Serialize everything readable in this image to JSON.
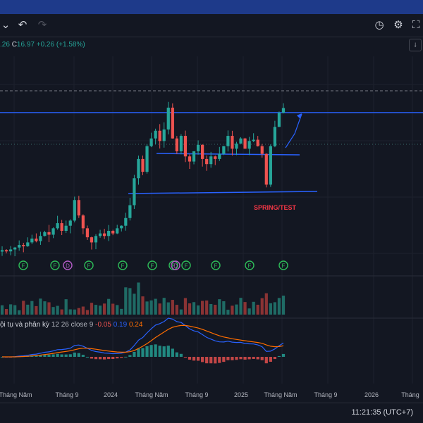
{
  "toolbar": {
    "undo_icon": "undo-icon",
    "redo_icon": "redo-icon",
    "icons_right": [
      "replay-icon",
      "gear-icon",
      "fullscreen-icon"
    ]
  },
  "legend": {
    "prefix": ".26",
    "close_label": "C",
    "close_value": "16.97",
    "change": "+0.26 (+1.58%)"
  },
  "macd_legend": {
    "name": "ội tụ và phân kỳ",
    "params": "12 26 close 9",
    "hist": "-0.05",
    "macd": "0.19",
    "signal": "0.24"
  },
  "status": {
    "clock": "11:21:35 (UTC+7)"
  },
  "colors": {
    "up": "#26a69a",
    "down": "#ef5350",
    "line_blue": "#2962ff",
    "macd": "#2962ff",
    "signal": "#ff6d00",
    "annotation": "#f23645"
  },
  "chart_data": {
    "type": "candlestick",
    "x_ticks": [
      "Tháng Năm",
      "Tháng 9",
      "2024",
      "Tháng Năm",
      "Tháng 9",
      "2025",
      "Tháng Năm",
      "Tháng 9",
      "2026",
      "Tháng"
    ],
    "annotation": "SPRING/TEST",
    "close_series": [
      5.9,
      5.8,
      5.95,
      6.1,
      6.3,
      6.2,
      6.5,
      6.8,
      6.6,
      7.0,
      7.3,
      7.1,
      7.6,
      8.0,
      7.4,
      7.8,
      8.2,
      9.8,
      8.6,
      7.6,
      6.9,
      6.5,
      7.0,
      7.2,
      7.0,
      7.4,
      7.2,
      7.6,
      7.8,
      8.4,
      9.4,
      11.5,
      13.0,
      12.0,
      14.0,
      14.6,
      15.2,
      14.4,
      15.3,
      17.0,
      14.6,
      13.6,
      14.8,
      13.2,
      12.8,
      13.6,
      14.1,
      13.0,
      12.6,
      13.2,
      13.0,
      13.4,
      14.0,
      14.8,
      13.8,
      14.2,
      14.6,
      13.8,
      14.4,
      14.5,
      14.0,
      13.4,
      11.0,
      14.0,
      15.5,
      16.6,
      16.97
    ],
    "events": {
      "labels": [
        "F",
        "F",
        "D",
        "F",
        "F",
        "F",
        "F",
        "D",
        "F",
        "F",
        "F",
        "F"
      ],
      "positions": [
        0.045,
        0.12,
        0.15,
        0.2,
        0.28,
        0.35,
        0.4,
        0.405,
        0.43,
        0.5,
        0.58,
        0.66
      ]
    },
    "series": [
      {
        "name": "Volume"
      },
      {
        "name": "MACD",
        "color": "#2962ff"
      },
      {
        "name": "Signal",
        "color": "#ff6d00"
      },
      {
        "name": "Histogram"
      }
    ],
    "trendlines": [
      "resistance-upper",
      "range-top",
      "range-bottom",
      "dashed-level",
      "dotted-current"
    ]
  }
}
